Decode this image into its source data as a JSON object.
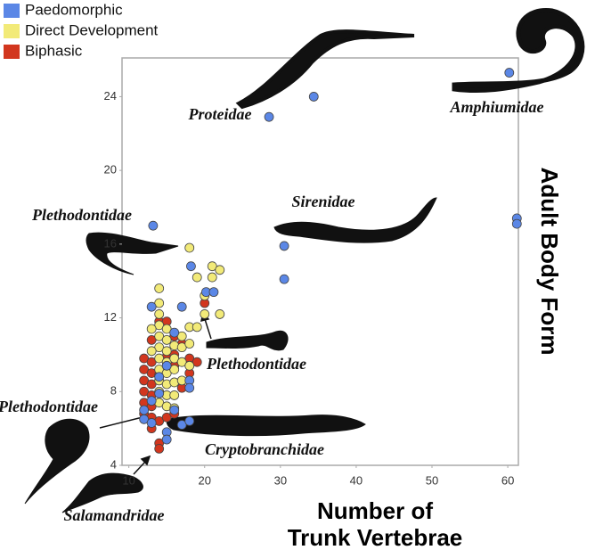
{
  "chart_data": {
    "type": "scatter",
    "x_label": [
      "Number of",
      "Trunk Vertebrae"
    ],
    "y_label": "Adult Body Form",
    "xlim": [
      9.1,
      61.4
    ],
    "xticks": [
      10,
      20,
      30,
      40,
      50,
      60
    ],
    "ylim": [
      4,
      26.1
    ],
    "yticks": [
      4,
      8,
      12,
      16,
      20,
      24
    ],
    "annotations": [
      "Proteidae",
      "Amphiumidae",
      "Sirenidae",
      "Plethodontidae",
      "Plethodontidae",
      "Plethodontidae",
      "Cryptobranchidae",
      "Salamandridae"
    ],
    "series": [
      {
        "name": "Paedomorphic",
        "color": "#5b87e6",
        "x": [
          60.2,
          34.4,
          28.5,
          61.2,
          61.2,
          30.5,
          30.5,
          13.2,
          18.2,
          20.2,
          21.2,
          12,
          12,
          13,
          13,
          14,
          15,
          15,
          15,
          16,
          16,
          17,
          18,
          18,
          18,
          13,
          17,
          14
        ],
        "values": [
          25.3,
          24,
          22.9,
          17.4,
          17.1,
          15.9,
          14.1,
          17,
          14.8,
          13.4,
          13.4,
          7,
          6.5,
          7.5,
          6.3,
          7.9,
          9.4,
          5.8,
          5.4,
          7,
          11.2,
          6.2,
          8.6,
          8.2,
          6.4,
          12.6,
          12.6,
          8.8
        ]
      },
      {
        "name": "Direct Development",
        "color": "#f2ea78",
        "x": [
          14,
          14,
          14,
          14,
          14,
          14,
          14,
          14,
          14,
          14,
          14,
          15,
          15,
          15,
          15,
          15,
          15,
          15,
          15,
          16,
          16,
          16,
          16,
          16,
          16,
          17,
          17,
          17,
          17,
          18,
          18,
          18,
          19,
          20,
          20,
          21,
          21,
          22,
          22,
          19,
          13,
          13,
          18
        ],
        "values": [
          13.6,
          12.8,
          12.2,
          11.6,
          11,
          10.4,
          9.8,
          9.2,
          8.6,
          8,
          7.4,
          11.4,
          10.8,
          10.2,
          9.6,
          9,
          8.4,
          7.8,
          7.2,
          10.5,
          9.8,
          9.2,
          8.5,
          7.8,
          7.1,
          11,
          10.4,
          9.6,
          8.6,
          15.8,
          11.5,
          10.6,
          11.5,
          13.2,
          12.2,
          14.8,
          14.2,
          14.6,
          12.2,
          14.2,
          11.4,
          10.2,
          9.4
        ]
      },
      {
        "name": "Biphasic",
        "color": "#d2361e",
        "x": [
          12,
          12,
          12,
          12,
          12,
          12,
          13,
          13,
          13,
          13,
          13,
          13,
          13,
          14,
          14,
          14,
          14,
          15,
          15,
          16,
          16,
          16,
          17,
          17,
          18,
          18,
          19,
          20,
          13,
          14,
          16,
          15
        ],
        "values": [
          9.8,
          9.2,
          8.6,
          8,
          7.4,
          6.8,
          9.6,
          9,
          8.4,
          7.8,
          7.2,
          6.6,
          6,
          5.2,
          4.9,
          6.4,
          8.9,
          9.9,
          6.6,
          10,
          9.4,
          6.8,
          8.2,
          10.6,
          9.8,
          9,
          9.6,
          12.8,
          10.8,
          11.8,
          11,
          11.8
        ]
      }
    ]
  }
}
